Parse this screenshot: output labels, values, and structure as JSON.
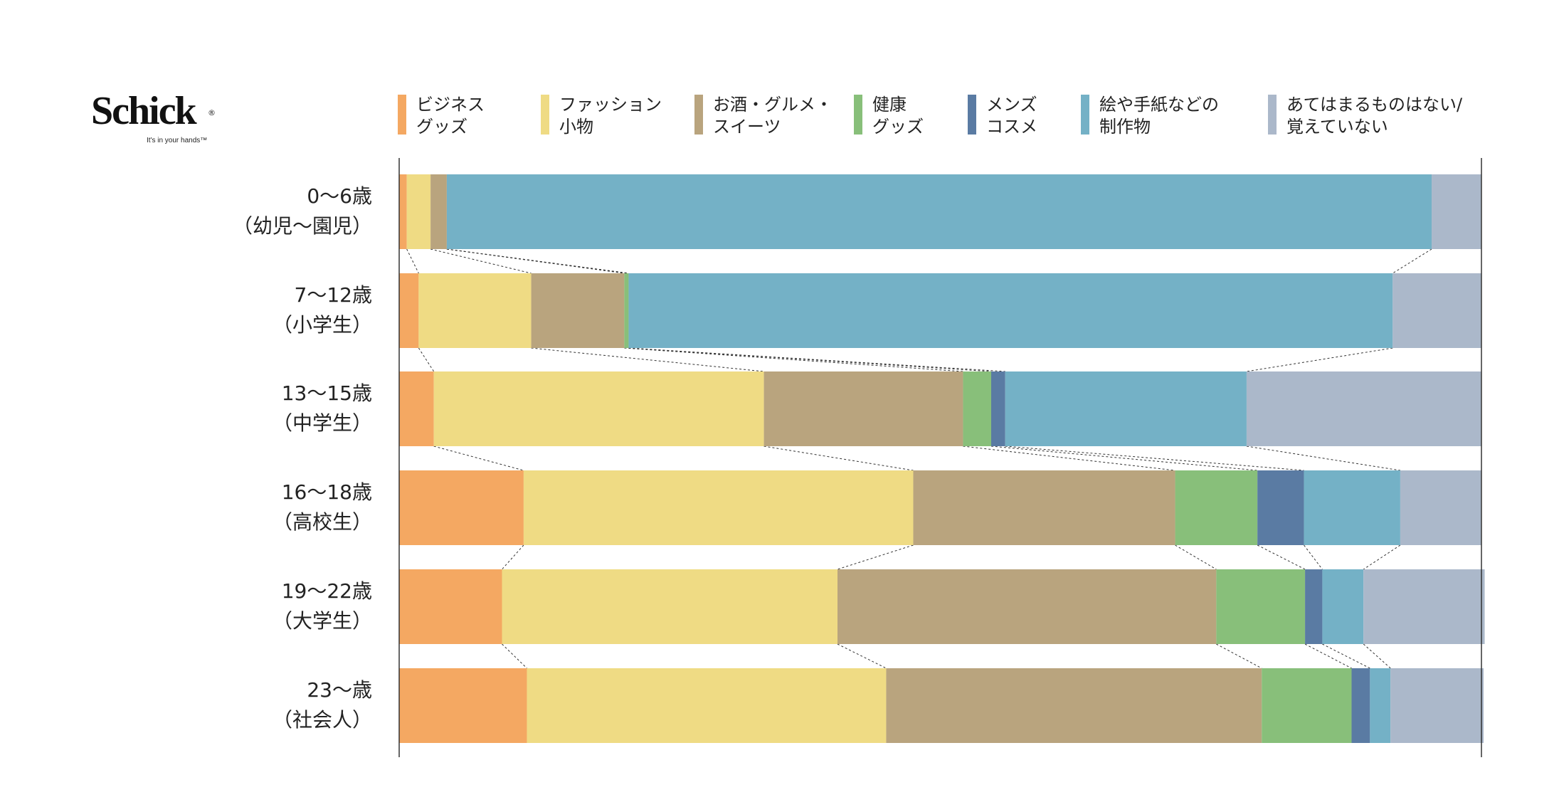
{
  "logo": {
    "brand": "Schick",
    "registered_mark": "®",
    "tagline": "It's in your hands™"
  },
  "chart_data": {
    "type": "bar",
    "orientation": "horizontal",
    "stacked": "100%",
    "unit": "%",
    "categories": [
      [
        "0～6歳",
        "（幼児～園児）"
      ],
      [
        "7～12歳",
        "（小学生）"
      ],
      [
        "13～15歳",
        "（中学生）"
      ],
      [
        "16～18歳",
        "（高校生）"
      ],
      [
        "19～22歳",
        "（大学生）"
      ],
      [
        "23～歳",
        "（社会人）"
      ]
    ],
    "series": [
      {
        "name": [
          "ビジネス",
          "グッズ"
        ],
        "color": "#F4A862",
        "values": [
          0.7,
          1.8,
          3.2,
          11.5,
          9.5,
          11.8
        ]
      },
      {
        "name": [
          "ファッション",
          "小物"
        ],
        "color": "#EFDB84",
        "values": [
          2.2,
          10.4,
          30.5,
          36.0,
          31.0,
          33.2
        ]
      },
      {
        "name": [
          "お酒・グルメ・",
          "スイーツ"
        ],
        "color": "#B9A47E",
        "values": [
          1.5,
          8.6,
          18.4,
          24.2,
          35.0,
          34.7
        ]
      },
      {
        "name": [
          "健康",
          "グッズ"
        ],
        "color": "#88BF7A",
        "values": [
          0,
          0.4,
          2.6,
          7.6,
          8.2,
          8.3
        ]
      },
      {
        "name": [
          "メンズ",
          "コスメ"
        ],
        "color": "#5A7BA3",
        "values": [
          0,
          0,
          1.3,
          4.3,
          1.6,
          1.7
        ]
      },
      {
        "name": [
          "絵や手紙などの",
          "制作物"
        ],
        "color": "#74B1C6",
        "values": [
          91.0,
          70.6,
          22.3,
          8.9,
          3.8,
          1.9
        ]
      },
      {
        "name": [
          "あてはまるものはない/",
          "覚えていない"
        ],
        "color": "#ABB8CA",
        "values": [
          4.6,
          8.2,
          21.7,
          7.5,
          11.2,
          8.6
        ]
      }
    ],
    "xlim": [
      0,
      100
    ],
    "grid": false,
    "legend": "top",
    "connector_lines": "dashed"
  }
}
